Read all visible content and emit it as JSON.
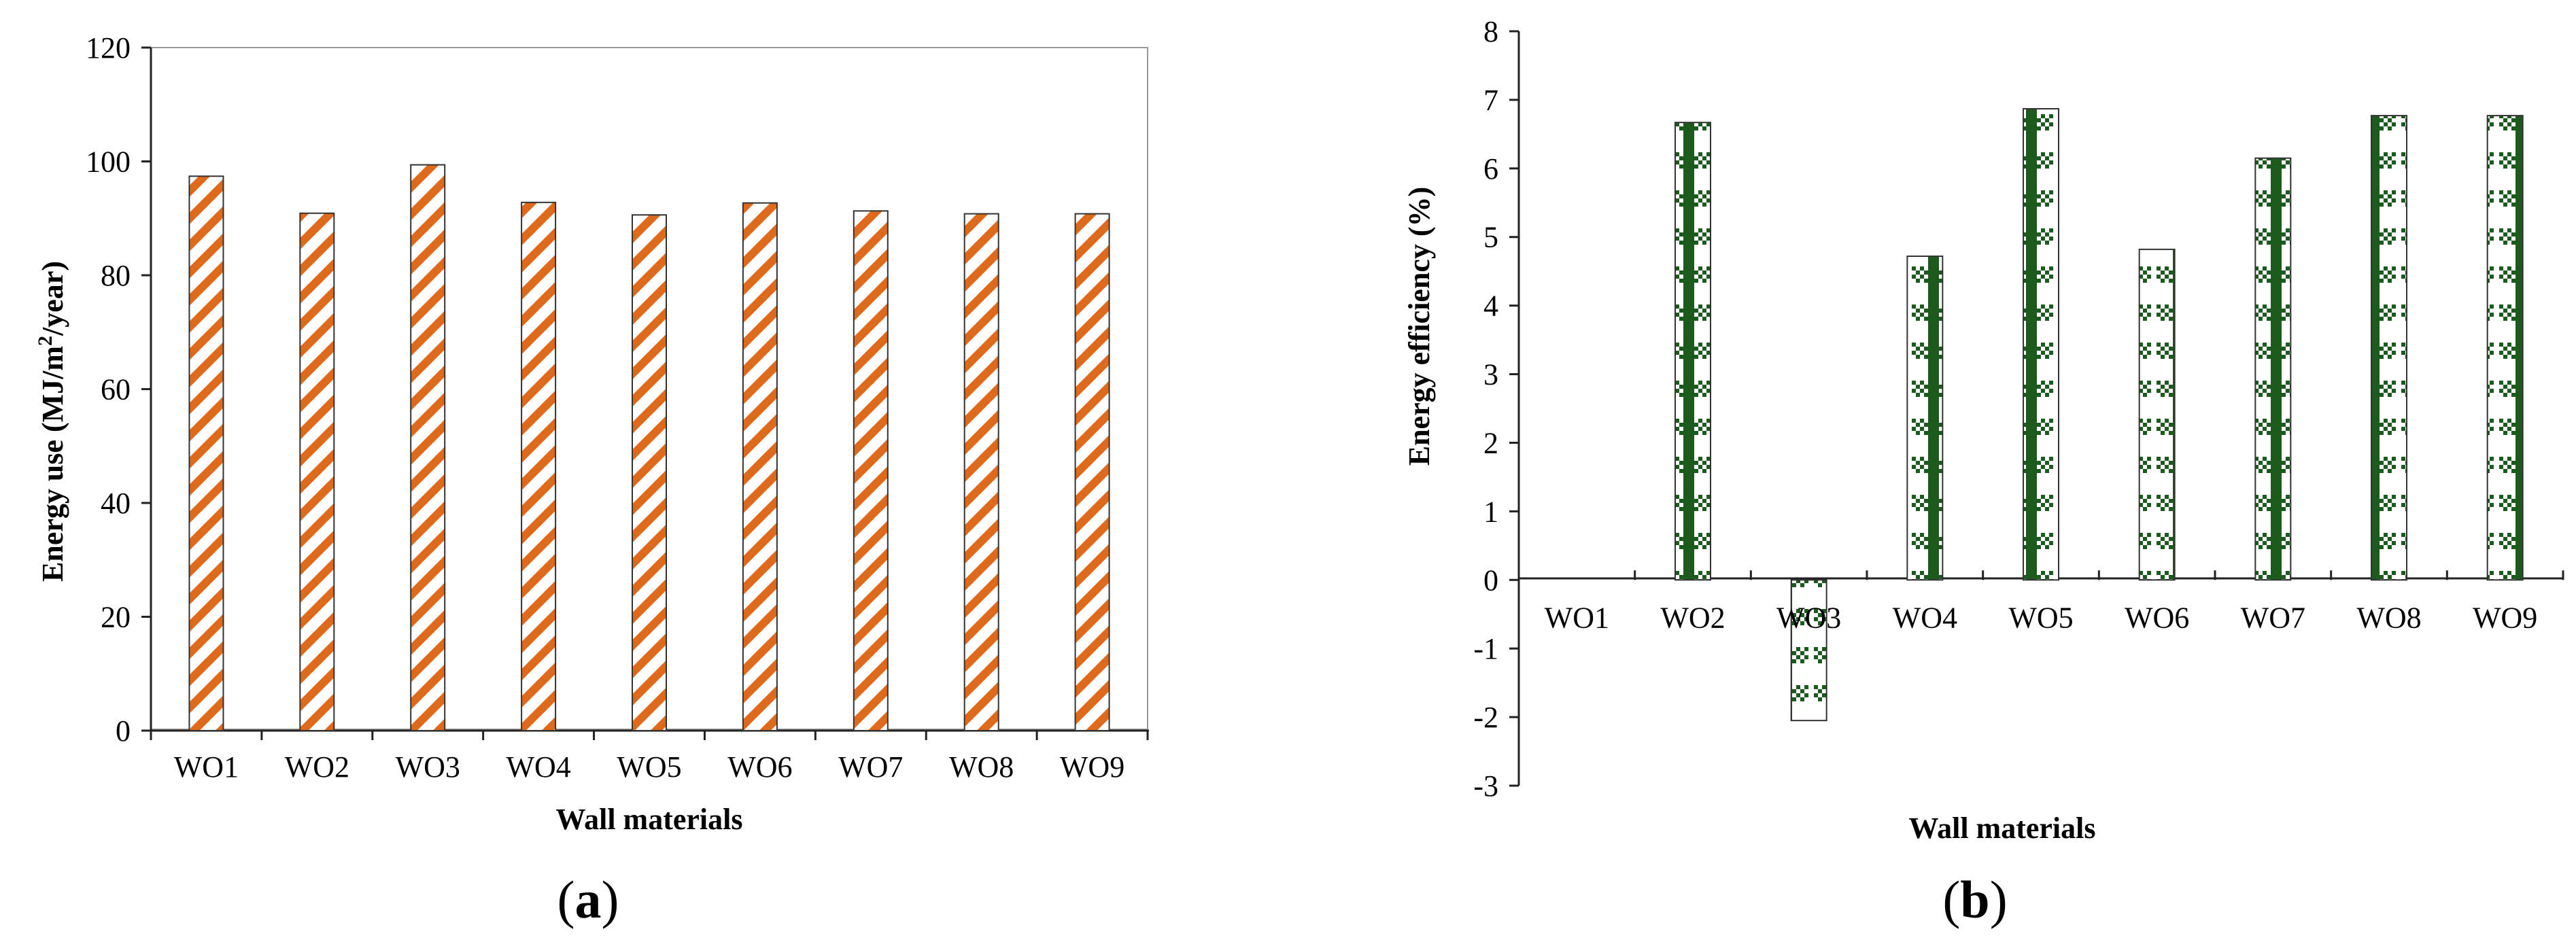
{
  "chart_data": [
    {
      "type": "bar",
      "panel": "a",
      "categories": [
        "WO1",
        "WO2",
        "WO3",
        "WO4",
        "WO5",
        "WO6",
        "WO7",
        "WO8",
        "WO9"
      ],
      "values": [
        97.4,
        90.9,
        99.4,
        92.8,
        90.6,
        92.7,
        91.3,
        90.8,
        90.8
      ],
      "title": "",
      "xlabel": "Wall materials",
      "ylabel": "Energy use (MJ/m²/year)",
      "ylabel_parts": {
        "main": "Energy use (MJ/m",
        "sup": "2",
        "tail": "/year)"
      },
      "ylim": [
        0,
        120
      ],
      "yticks": [
        "0",
        "20",
        "40",
        "60",
        "80",
        "100",
        "120"
      ],
      "grid": false,
      "bar_color": "#e06a1b",
      "bar_pattern": "diagonal-stripes"
    },
    {
      "type": "bar",
      "panel": "b",
      "categories": [
        "WO1",
        "WO2",
        "WO3",
        "WO4",
        "WO5",
        "WO6",
        "WO7",
        "WO8",
        "WO9"
      ],
      "values": [
        0,
        6.67,
        -2.05,
        4.72,
        6.87,
        4.82,
        6.15,
        6.77,
        6.77
      ],
      "title": "",
      "xlabel": "Wall materials",
      "ylabel": "Energy  efficiency (%)",
      "ylim": [
        -3,
        8
      ],
      "yticks": [
        "-3",
        "-2",
        "-1",
        "0",
        "1",
        "2",
        "3",
        "4",
        "5",
        "6",
        "7",
        "8"
      ],
      "grid": false,
      "bar_color": "#1d5a1d",
      "bar_pattern": "checkered-columns"
    }
  ],
  "labels": {
    "panel_a": {
      "open": "(",
      "letter": "a",
      "close": ")"
    },
    "panel_b": {
      "open": "(",
      "letter": "b",
      "close": ")"
    }
  }
}
